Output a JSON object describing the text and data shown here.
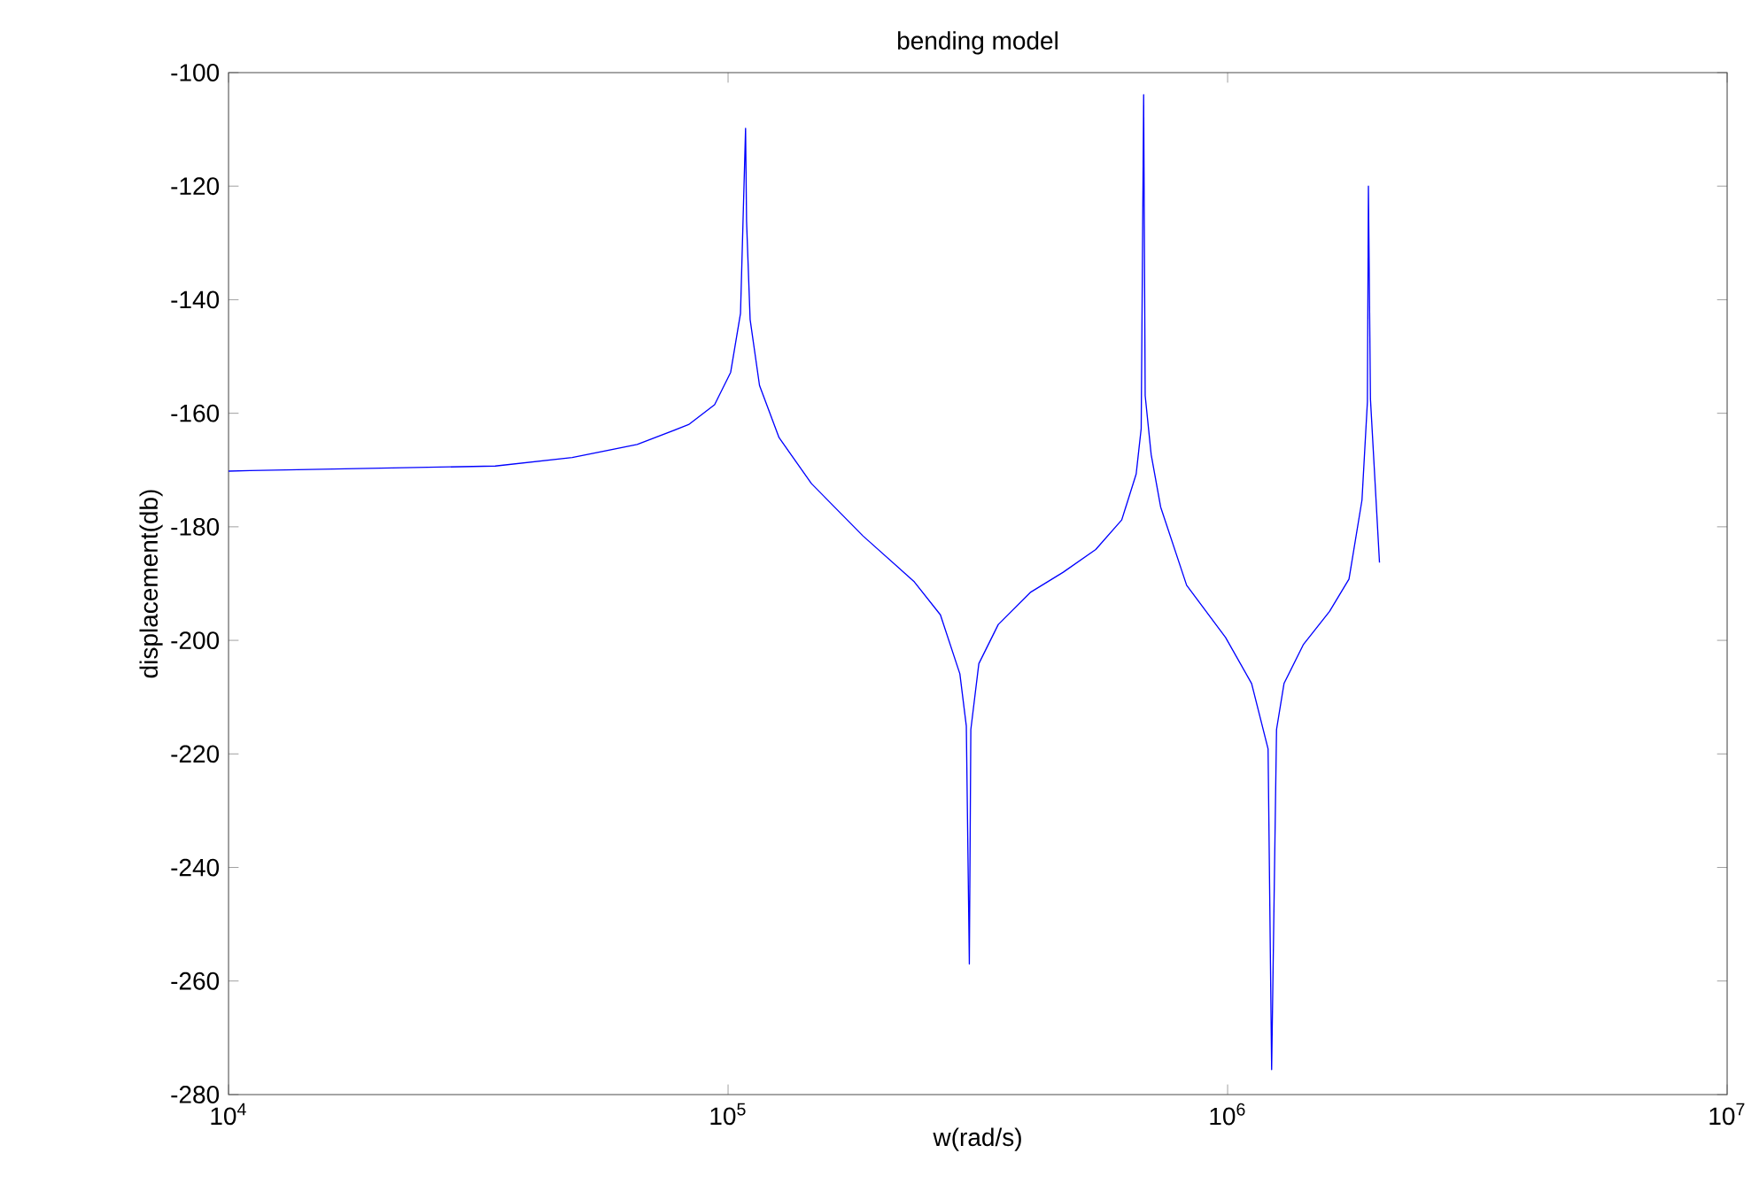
{
  "chart_data": {
    "type": "line",
    "title": "bending model",
    "xlabel": "w(rad/s)",
    "ylabel": "displacement(db)",
    "log": "x",
    "grid": false,
    "marker": "none",
    "line_style": "solid",
    "xlim": [
      10000,
      10000000
    ],
    "xticks": [
      {
        "value": 10000,
        "label": "10$^{4}$"
      },
      {
        "value": 100000,
        "label": "10$^{5}$"
      },
      {
        "value": 1000000,
        "label": "10$^{6}$"
      },
      {
        "value": 10000000,
        "label": "10$^{7}$"
      }
    ],
    "ylim": [
      -280,
      -100
    ],
    "yticks": [
      -280,
      -260,
      -240,
      -220,
      -200,
      -180,
      -160,
      -140,
      -120,
      -100
    ],
    "x": [
      10000,
      11040,
      34200,
      48750,
      65770,
      83370,
      93970,
      101200,
      105900,
      108400,
      108900,
      110700,
      115600,
      126500,
      146900,
      186200,
      236000,
      266100,
      291100,
      299900,
      304100,
      306200,
      317700,
      347500,
      403600,
      468800,
      544500,
      613800,
      656100,
      671400,
      679200,
      683900,
      703100,
      734500,
      827900,
      990800,
      1117000,
      1205000,
      1225000,
      1253000,
      1297000,
      1419000,
      1600000,
      1750000,
      1858000,
      1905000,
      1914000,
      1932000,
      2014000
    ],
    "series": [
      {
        "color": "#0000ff",
        "values": [
          -170.2,
          -170.1,
          -169.3,
          -167.8,
          -165.5,
          -162.0,
          -158.5,
          -152.8,
          -142.4,
          -109.8,
          -126.2,
          -143.5,
          -155.1,
          -164.3,
          -172.4,
          -181.6,
          -189.7,
          -195.5,
          -205.9,
          -215.1,
          -257.0,
          -215.7,
          -204.1,
          -197.2,
          -191.5,
          -188.0,
          -184.0,
          -178.8,
          -170.7,
          -162.7,
          -103.9,
          -156.9,
          -167.3,
          -176.5,
          -190.3,
          -199.5,
          -207.6,
          -219.1,
          -275.6,
          -215.7,
          -207.6,
          -200.7,
          -194.9,
          -189.2,
          -175.3,
          -158.0,
          -120.0,
          -157.5,
          -186.3
        ]
      }
    ]
  }
}
